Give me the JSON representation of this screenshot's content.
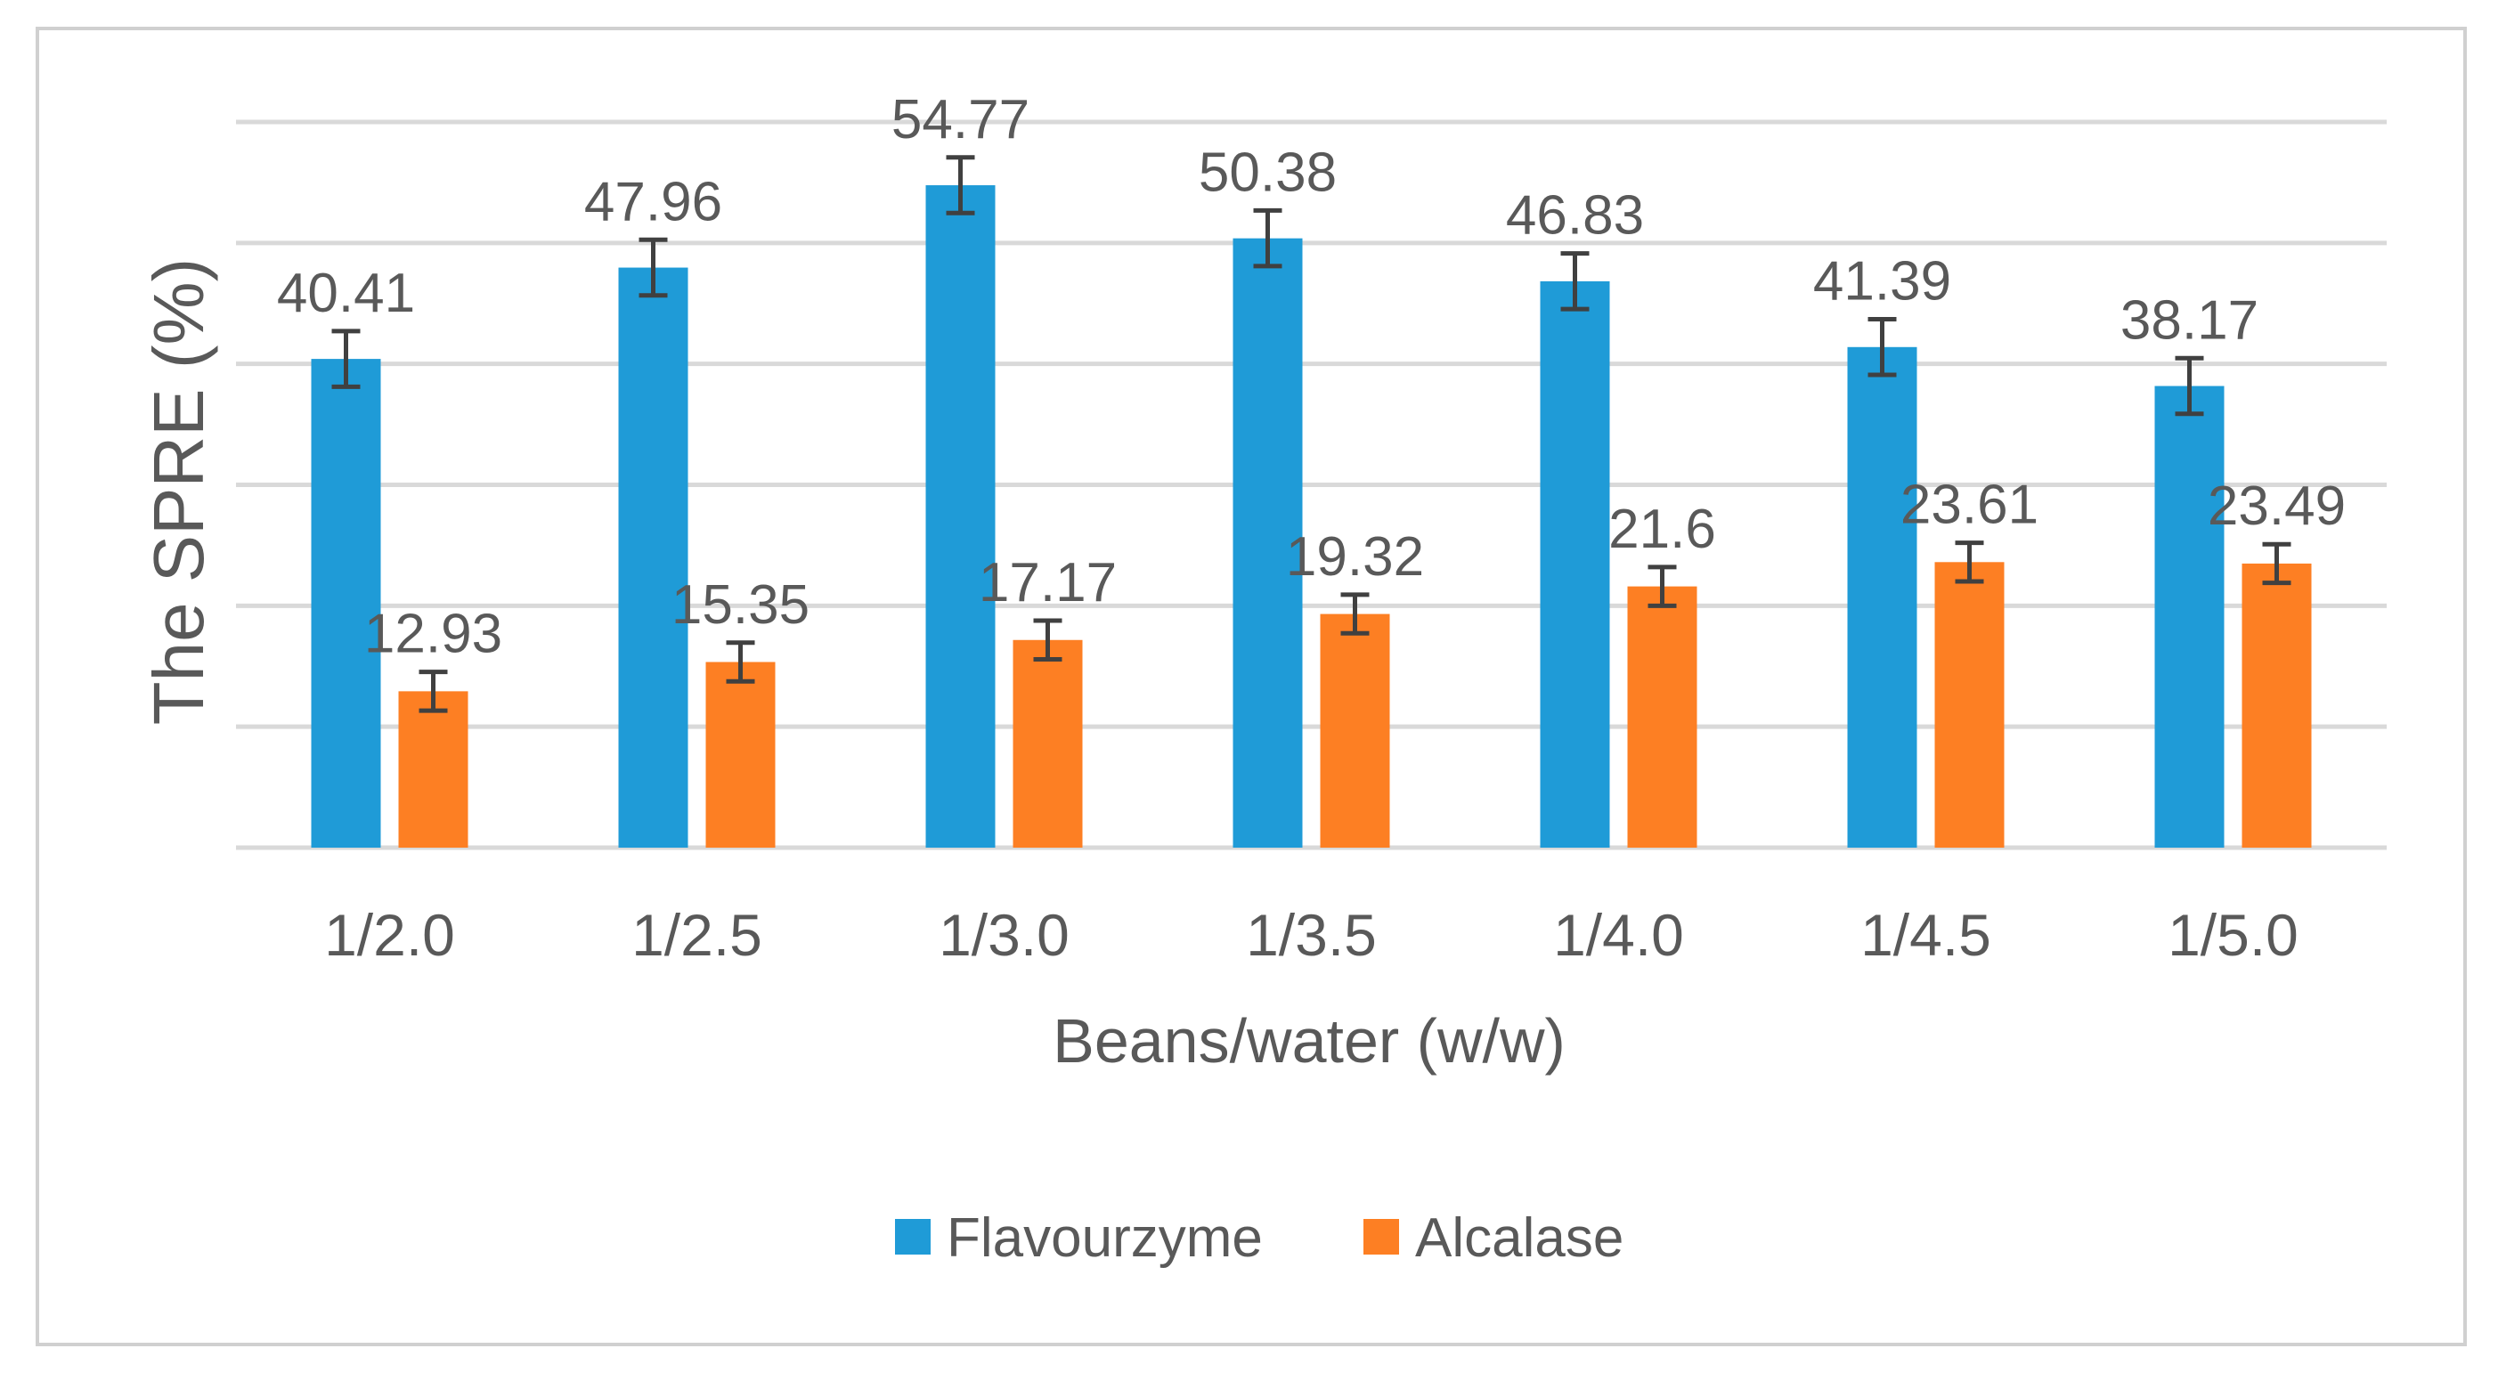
{
  "chart_data": {
    "type": "bar",
    "title": "",
    "xlabel": "Beans/water (w/w)",
    "ylabel": "The SPRE (%)",
    "ylim": [
      0,
      60
    ],
    "ytick_step": 10,
    "y_tick_labels_shown": false,
    "grid": true,
    "legend_position": "bottom",
    "categories": [
      "1/2.0",
      "1/2.5",
      "1/3.0",
      "1/3.5",
      "1/4.0",
      "1/4.5",
      "1/5.0"
    ],
    "series": [
      {
        "name": "Flavourzyme",
        "color": "#1f9bd7",
        "values": [
          40.41,
          47.96,
          54.77,
          50.38,
          46.83,
          41.39,
          38.17
        ],
        "labels": [
          "40.41",
          "47.96",
          "54.77",
          "50.38",
          "46.83",
          "41.39",
          "38.17"
        ],
        "errors": [
          2.3,
          2.3,
          2.3,
          2.3,
          2.3,
          2.3,
          2.3
        ]
      },
      {
        "name": "Alcalase",
        "color": "#fd7f23",
        "values": [
          12.93,
          15.35,
          17.17,
          19.32,
          21.6,
          23.61,
          23.49
        ],
        "labels": [
          "12.93",
          "15.35",
          "17.17",
          "19.32",
          "21.6",
          "23.61",
          "23.49"
        ],
        "errors": [
          1.6,
          1.6,
          1.6,
          1.6,
          1.6,
          1.6,
          1.6
        ]
      }
    ]
  }
}
